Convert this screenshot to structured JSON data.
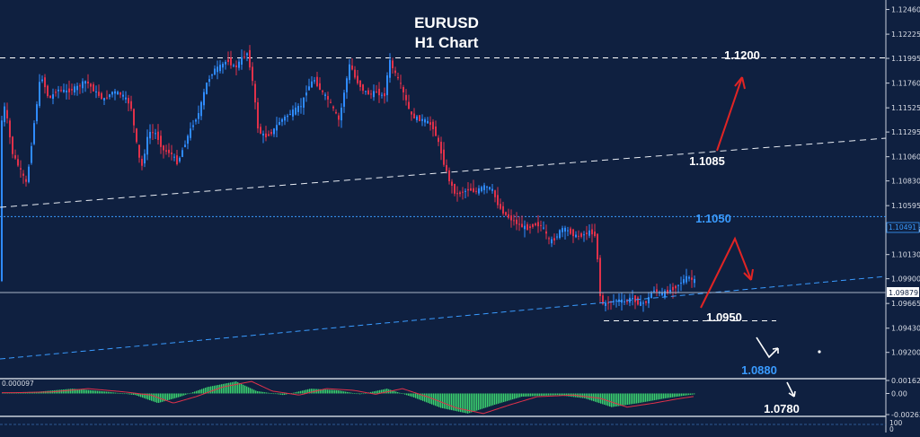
{
  "chart_data": [
    {
      "type": "candlestick",
      "title": "EURUSD",
      "subtitle": "H1 Chart",
      "ylim": [
        1.0895,
        1.1255
      ],
      "y_ticks": [
        "1.12460",
        "1.12225",
        "1.11995",
        "1.11760",
        "1.11525",
        "1.11295",
        "1.11060",
        "1.10830",
        "1.10595",
        "1.10365",
        "1.10130",
        "1.09900",
        "1.09665",
        "1.09430",
        "1.09200"
      ],
      "current_price": "1.09879",
      "price_box_label": "1.10491",
      "levels": [
        {
          "label": "1.1200",
          "value": 1.12,
          "style": "dashed",
          "color": "#ffffff"
        },
        {
          "label": "1.1050",
          "value": 1.10491,
          "style": "dotted",
          "color": "#3a9bff"
        },
        {
          "label": "1.1085",
          "value": null,
          "style": "trendline",
          "color": "#ffffff"
        },
        {
          "label": "1.0950",
          "value": 1.095,
          "style": "dashed",
          "color": "#ffffff"
        },
        {
          "label": "1.0880",
          "value": null,
          "style": "arrow-target",
          "color": "#3a9bff"
        },
        {
          "label": "1.0780",
          "value": null,
          "style": "arrow-target",
          "color": "#ffffff"
        }
      ],
      "series_path": [
        [
          0,
          1.113
        ],
        [
          6,
          1.1155
        ],
        [
          14,
          1.111
        ],
        [
          22,
          1.1095
        ],
        [
          30,
          1.108
        ],
        [
          38,
          1.1135
        ],
        [
          46,
          1.1185
        ],
        [
          55,
          1.116
        ],
        [
          64,
          1.117
        ],
        [
          75,
          1.1168
        ],
        [
          86,
          1.1172
        ],
        [
          96,
          1.1178
        ],
        [
          106,
          1.1168
        ],
        [
          116,
          1.116
        ],
        [
          126,
          1.1168
        ],
        [
          136,
          1.1165
        ],
        [
          146,
          1.1155
        ],
        [
          154,
          1.111
        ],
        [
          158,
          1.1095
        ],
        [
          166,
          1.113
        ],
        [
          174,
          1.1128
        ],
        [
          182,
          1.1112
        ],
        [
          190,
          1.111
        ],
        [
          198,
          1.11
        ],
        [
          206,
          1.1118
        ],
        [
          214,
          1.1135
        ],
        [
          222,
          1.1148
        ],
        [
          230,
          1.1175
        ],
        [
          238,
          1.1188
        ],
        [
          246,
          1.1192
        ],
        [
          254,
          1.1198
        ],
        [
          262,
          1.119
        ],
        [
          270,
          1.12
        ],
        [
          276,
          1.1205
        ],
        [
          282,
          1.1175
        ],
        [
          288,
          1.113
        ],
        [
          296,
          1.1125
        ],
        [
          304,
          1.113
        ],
        [
          312,
          1.114
        ],
        [
          320,
          1.1145
        ],
        [
          328,
          1.115
        ],
        [
          336,
          1.1155
        ],
        [
          342,
          1.117
        ],
        [
          350,
          1.118
        ],
        [
          358,
          1.1168
        ],
        [
          366,
          1.116
        ],
        [
          372,
          1.115
        ],
        [
          378,
          1.114
        ],
        [
          384,
          1.117
        ],
        [
          390,
          1.1195
        ],
        [
          396,
          1.118
        ],
        [
          404,
          1.117
        ],
        [
          412,
          1.1165
        ],
        [
          420,
          1.1168
        ],
        [
          428,
          1.1162
        ],
        [
          434,
          1.1198
        ],
        [
          440,
          1.1185
        ],
        [
          446,
          1.1175
        ],
        [
          452,
          1.116
        ],
        [
          458,
          1.1145
        ],
        [
          466,
          1.1142
        ],
        [
          474,
          1.114
        ],
        [
          482,
          1.1135
        ],
        [
          490,
          1.1115
        ],
        [
          496,
          1.1095
        ],
        [
          502,
          1.108
        ],
        [
          508,
          1.107
        ],
        [
          514,
          1.1072
        ],
        [
          522,
          1.1075
        ],
        [
          530,
          1.1073
        ],
        [
          540,
          1.1078
        ],
        [
          548,
          1.1075
        ],
        [
          556,
          1.1058
        ],
        [
          564,
          1.105
        ],
        [
          572,
          1.1045
        ],
        [
          580,
          1.104
        ],
        [
          588,
          1.1038
        ],
        [
          596,
          1.1042
        ],
        [
          604,
          1.104
        ],
        [
          612,
          1.1025
        ],
        [
          618,
          1.1028
        ],
        [
          626,
          1.1038
        ],
        [
          634,
          1.1035
        ],
        [
          642,
          1.103
        ],
        [
          650,
          1.1032
        ],
        [
          658,
          1.1035
        ],
        [
          664,
          1.103
        ],
        [
          668,
          1.0975
        ],
        [
          672,
          1.0965
        ],
        [
          680,
          1.0968
        ],
        [
          688,
          1.097
        ],
        [
          696,
          1.0968
        ],
        [
          704,
          1.0972
        ],
        [
          712,
          1.0966
        ],
        [
          720,
          1.0968
        ],
        [
          728,
          1.098
        ],
        [
          736,
          1.0975
        ],
        [
          744,
          1.0978
        ],
        [
          752,
          1.0982
        ],
        [
          760,
          1.0988
        ],
        [
          766,
          1.0992
        ],
        [
          772,
          1.0988
        ]
      ]
    },
    {
      "type": "bar",
      "name": "oscillator",
      "readout": "0.000097",
      "y_ticks": [
        "0.00162",
        "0.00",
        "-0.00263"
      ],
      "ylim": [
        -0.00263,
        0.00162
      ],
      "x": [
        0,
        40,
        80,
        120,
        150,
        175,
        200,
        230,
        262,
        285,
        315,
        345,
        375,
        400,
        430,
        460,
        490,
        520,
        550,
        580,
        620,
        650,
        680,
        710,
        740,
        772
      ],
      "values": [
        0.0001,
        0.0002,
        0.0006,
        0.0002,
        -0.0002,
        -0.0012,
        -0.0004,
        0.0008,
        0.0015,
        0.0003,
        -0.0002,
        0.0006,
        0.0004,
        -0.0001,
        0.0006,
        -0.0005,
        -0.0018,
        -0.0025,
        -0.0014,
        -0.0004,
        -0.0002,
        -0.0006,
        -0.0017,
        -0.0012,
        -0.0006,
        -0.0001
      ]
    }
  ],
  "bottom_axis": {
    "labels": [
      "100",
      "0"
    ]
  }
}
